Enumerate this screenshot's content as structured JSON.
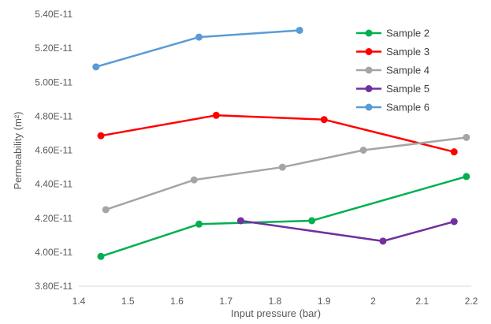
{
  "chart_data": {
    "type": "line",
    "title": "",
    "xlabel": "Input pressure  (bar)",
    "ylabel": "Permeability  (m²)",
    "xlim": [
      1.4,
      2.2
    ],
    "ylim": [
      3.8e-11,
      5.4e-11
    ],
    "x_ticks": [
      "1.4",
      "1.5",
      "1.6",
      "1.7",
      "1.8",
      "1.9",
      "2",
      "2.1",
      "2.2"
    ],
    "y_ticks": [
      "3.80E-11",
      "4.00E-11",
      "4.20E-11",
      "4.40E-11",
      "4.60E-11",
      "4.80E-11",
      "5.00E-11",
      "5.20E-11",
      "5.40E-11"
    ],
    "grid": false,
    "legend_position": "top-right",
    "series": [
      {
        "name": "Sample 2",
        "color": "#00b050",
        "x": [
          1.445,
          1.645,
          1.875,
          2.19
        ],
        "y": [
          3.975e-11,
          4.165e-11,
          4.185e-11,
          4.445e-11
        ]
      },
      {
        "name": "Sample 3",
        "color": "#ff0000",
        "x": [
          1.445,
          1.68,
          1.9,
          2.165
        ],
        "y": [
          4.685e-11,
          4.805e-11,
          4.78e-11,
          4.59e-11
        ]
      },
      {
        "name": "Sample 4",
        "color": "#a5a5a5",
        "x": [
          1.455,
          1.635,
          1.815,
          1.98,
          2.19
        ],
        "y": [
          4.25e-11,
          4.425e-11,
          4.5e-11,
          4.6e-11,
          4.675e-11
        ]
      },
      {
        "name": "Sample 5",
        "color": "#7030a0",
        "x": [
          1.73,
          2.02,
          2.165
        ],
        "y": [
          4.185e-11,
          4.065e-11,
          4.18e-11
        ]
      },
      {
        "name": "Sample 6",
        "color": "#5b9bd5",
        "x": [
          1.435,
          1.645,
          1.85
        ],
        "y": [
          5.09e-11,
          5.265e-11,
          5.305e-11
        ]
      }
    ]
  }
}
